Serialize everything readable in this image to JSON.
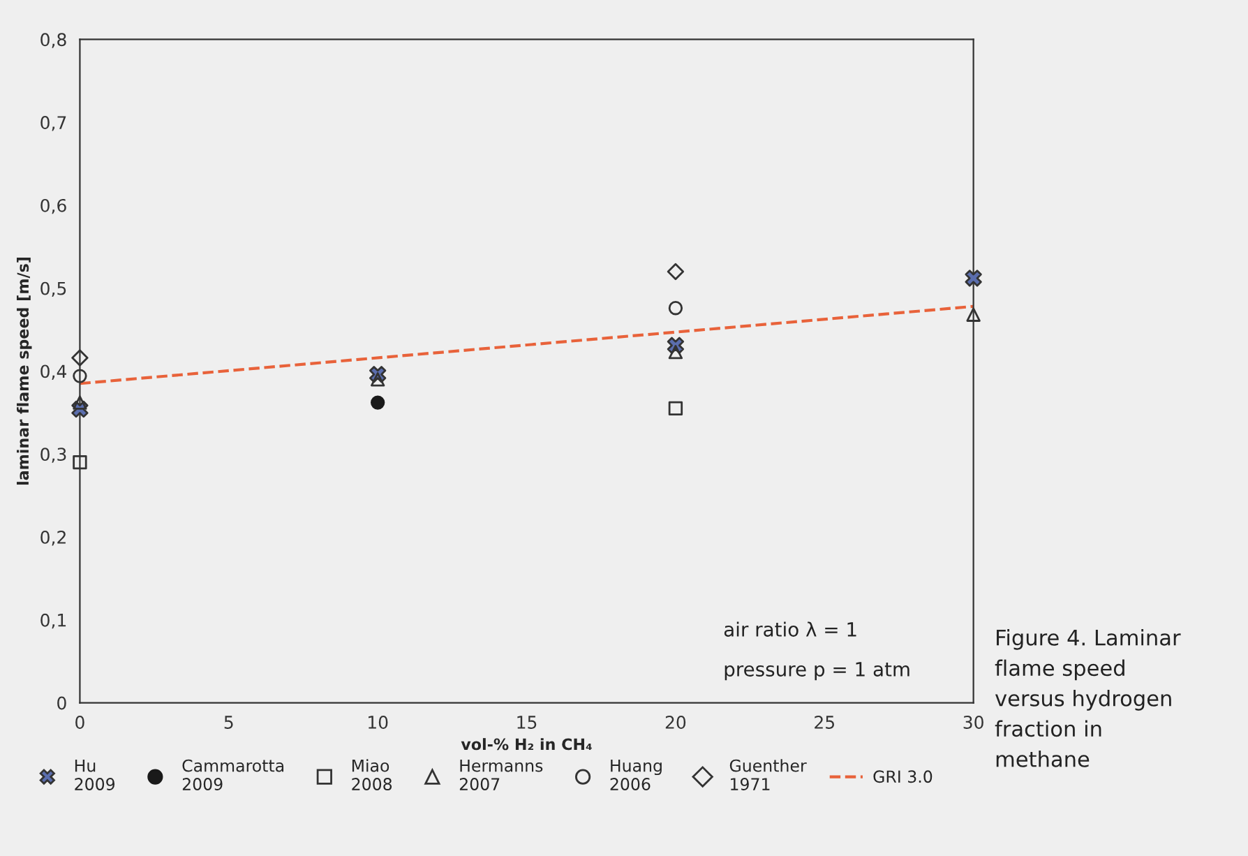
{
  "chart_data": {
    "type": "scatter",
    "xlabel": "vol-% H₂ in CH₄",
    "ylabel": "laminar flame speed [m/s]",
    "xlim": [
      0,
      30
    ],
    "xticks": [
      0,
      5,
      10,
      15,
      20,
      25,
      30
    ],
    "ylim": [
      0,
      0.8
    ],
    "yticks": [
      0,
      {
        "value": 0.1,
        "label": "0,1"
      },
      {
        "value": 0.2,
        "label": "0,2"
      },
      {
        "value": 0.3,
        "label": "0,3"
      },
      {
        "value": 0.4,
        "label": "0,4"
      },
      {
        "value": 0.5,
        "label": "0,5"
      },
      {
        "value": 0.6,
        "label": "0,6"
      },
      {
        "value": 0.7,
        "label": "0,7"
      },
      {
        "value": 0.8,
        "label": "0,8"
      }
    ],
    "grid": false,
    "legend": "bottom",
    "annotations": [
      "air ratio λ = 1",
      "pressure p = 1 atm",
      "Figure 4. Laminar flame speed versus hydrogen fraction in methane"
    ],
    "series": [
      {
        "name": "Hu\n2009",
        "color": "#5b6eae",
        "marker": "cross",
        "x": [
          0,
          10,
          20,
          30
        ],
        "values": [
          0.354,
          0.396,
          0.431,
          0.512
        ]
      },
      {
        "name": "Cammarotta\n2009",
        "color": "#1a1a1a",
        "marker": "circle",
        "x": [
          10
        ],
        "values": [
          0.362
        ]
      },
      {
        "name": "Miao\n2008",
        "color": "#333333",
        "marker": "square",
        "x": [
          0,
          20
        ],
        "values": [
          0.29,
          0.355
        ]
      },
      {
        "name": "Hermanns\n2007",
        "color": "#333333",
        "marker": "triangle",
        "x": [
          0,
          10,
          20,
          30
        ],
        "values": [
          0.362,
          0.39,
          0.423,
          0.468
        ]
      },
      {
        "name": "Huang\n2006",
        "color": "#333333",
        "marker": "circle",
        "x": [
          0,
          20
        ],
        "values": [
          0.394,
          0.476
        ]
      },
      {
        "name": "Guenther\n1971",
        "color": "#333333",
        "marker": "diamond",
        "x": [
          0,
          20
        ],
        "values": [
          0.416,
          0.52
        ]
      },
      {
        "name": "GRI 3.0",
        "type": "line",
        "color": "#e8623a",
        "line_style": "dashed",
        "marker": "none",
        "x": [
          0,
          30
        ],
        "values": [
          0.385,
          0.478
        ]
      }
    ]
  }
}
